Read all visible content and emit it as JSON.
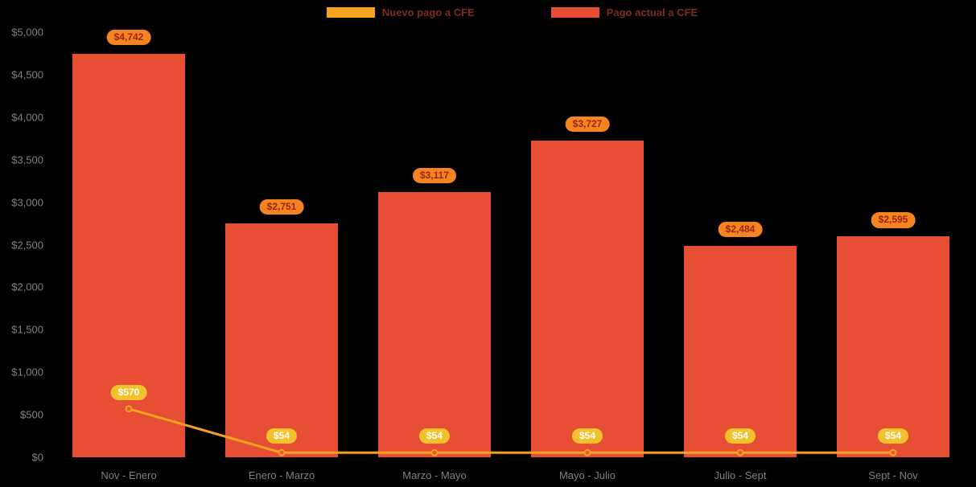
{
  "chart_data": {
    "type": "bar",
    "title": "",
    "categories": [
      "Nov - Enero",
      "Enero - Marzo",
      "Marzo - Mayo",
      "Mayo - Julio",
      "Julio - Sept",
      "Sept - Nov"
    ],
    "series": [
      {
        "name": "Nuevo pago a CFE",
        "type": "line",
        "color": "#f6a21e",
        "marker_color": "#e85a3e",
        "values": [
          570,
          54,
          54,
          54,
          54,
          54
        ],
        "labels": [
          "$570",
          "$54",
          "$54",
          "$54",
          "$54",
          "$54"
        ],
        "label_bg": "#f2c12c",
        "label_text_color": "#ffffff"
      },
      {
        "name": "Pago actual a CFE",
        "type": "bar",
        "color": "#e74f35",
        "values": [
          4742,
          2751,
          3117,
          3727,
          2484,
          2595
        ],
        "labels": [
          "$4,742",
          "$2,751",
          "$3,117",
          "$3,727",
          "$2,484",
          "$2,595"
        ],
        "label_bg": "#f5831f",
        "label_text_color": "#99261a"
      }
    ],
    "xlabel": "",
    "ylabel": "",
    "ylim": [
      0,
      5000
    ],
    "ytick_step": 500,
    "ytick_labels": [
      "$0",
      "$500",
      "$1,000",
      "$1,500",
      "$2,000",
      "$2,500",
      "$3,000",
      "$3,500",
      "$4,000",
      "$4,500",
      "$5,000"
    ],
    "grid": false,
    "legend_position": "top",
    "colors": {
      "background": "#000000",
      "axis_text": "#808080",
      "legend_text": "#7e2d1d"
    }
  }
}
